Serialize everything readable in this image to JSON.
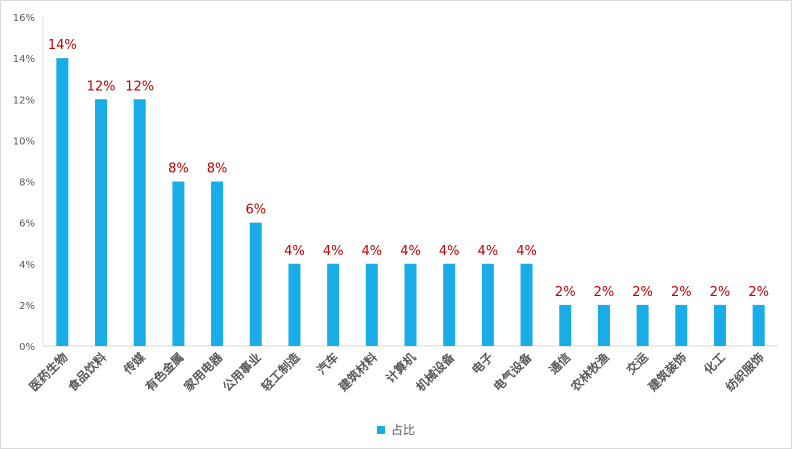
{
  "chart_data": {
    "type": "bar",
    "categories": [
      "医药生物",
      "食品饮料",
      "传媒",
      "有色金属",
      "家用电器",
      "公用事业",
      "轻工制造",
      "汽车",
      "建筑材料",
      "计算机",
      "机械设备",
      "电子",
      "电气设备",
      "通信",
      "农林牧渔",
      "交运",
      "建筑装饰",
      "化工",
      "纺织服饰"
    ],
    "series": [
      {
        "name": "占比",
        "values": [
          14,
          12,
          12,
          8,
          8,
          6,
          4,
          4,
          4,
          4,
          4,
          4,
          4,
          2,
          2,
          2,
          2,
          2,
          2
        ],
        "data_labels": [
          "14%",
          "12%",
          "12%",
          "8%",
          "8%",
          "6%",
          "4%",
          "4%",
          "4%",
          "4%",
          "4%",
          "4%",
          "4%",
          "2%",
          "2%",
          "2%",
          "2%",
          "2%",
          "2%"
        ]
      }
    ],
    "ylim": [
      0,
      16
    ],
    "y_ticks": [
      "0%",
      "2%",
      "4%",
      "6%",
      "8%",
      "10%",
      "12%",
      "14%",
      "16%"
    ],
    "grid": false,
    "legend_position": "bottom",
    "bar_color": "#1aace6",
    "label_color": "#c00000",
    "axis_color": "#595959"
  }
}
